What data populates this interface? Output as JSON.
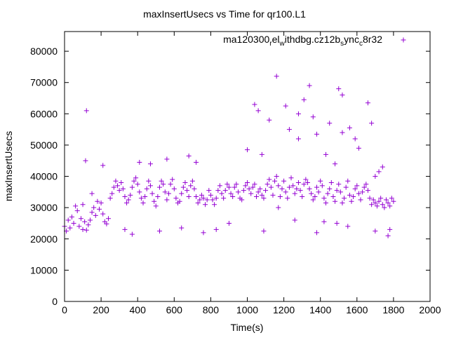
{
  "chart_data": {
    "type": "scatter",
    "title": "maxInsertUsecs vs Time for qr100.L1",
    "xlabel": "Time(s)",
    "ylabel": "maxInsertUsecs",
    "xlim": [
      0,
      2000
    ],
    "ylim": [
      0,
      86300
    ],
    "xticks": [
      0,
      200,
      400,
      600,
      800,
      1000,
      1200,
      1400,
      1600,
      1800,
      2000
    ],
    "yticks": [
      0,
      10000,
      20000,
      30000,
      40000,
      50000,
      60000,
      70000,
      80000
    ],
    "grid": false,
    "legend_position": "top-right",
    "series": [
      {
        "name": "ma120300_rel_withdbg.cz12b_sync_c8r32",
        "legend_parts": [
          {
            "t": "ma120300",
            "sub": false
          },
          {
            "t": "r",
            "sub": true
          },
          {
            "t": "el",
            "sub": false
          },
          {
            "t": "w",
            "sub": true
          },
          {
            "t": "ithdbg.cz12b",
            "sub": false
          },
          {
            "t": "s",
            "sub": true
          },
          {
            "t": "ync",
            "sub": false
          },
          {
            "t": "c",
            "sub": true
          },
          {
            "t": "8r32",
            "sub": false
          }
        ],
        "color": "#9400d3",
        "marker": "plus",
        "x_start": 0,
        "x_step": 10,
        "y": [
          24000,
          22500,
          26000,
          23500,
          27000,
          25000,
          30500,
          29000,
          24000,
          26500,
          23000,
          25500,
          22800,
          24500,
          26000,
          28500,
          30000,
          27500,
          32000,
          29500,
          31500,
          28000,
          25500,
          24800,
          26500,
          33000,
          34500,
          36500,
          38500,
          37000,
          35500,
          38000,
          36000,
          33500,
          31500,
          32500,
          34000,
          36500,
          38500,
          39500,
          37500,
          35000,
          33000,
          31500,
          33500,
          36000,
          38500,
          37000,
          34500,
          32000,
          30500,
          33500,
          36500,
          38500,
          37500,
          35000,
          32500,
          34500,
          37500,
          39000,
          36000,
          33000,
          31500,
          32000,
          34500,
          36500,
          38000,
          35500,
          33500,
          37000,
          38500,
          36000,
          33500,
          31500,
          32500,
          34000,
          33000,
          31000,
          32500,
          35500,
          34000,
          32500,
          31000,
          33000,
          35500,
          37000,
          34500,
          33000,
          35500,
          37500,
          36500,
          34500,
          33500,
          36500,
          37500,
          35000,
          33000,
          32500,
          35500,
          37000,
          38000,
          36000,
          34500,
          36500,
          37500,
          33500,
          35000,
          36000,
          34000,
          33000,
          35500,
          37500,
          39000,
          36500,
          34000,
          38500,
          40000,
          37000,
          33500,
          36000,
          38500,
          35000,
          33000,
          36500,
          39500,
          37000,
          34500,
          36000,
          38000,
          35500,
          33500,
          37500,
          39000,
          38000,
          36000,
          34500,
          32500,
          33500,
          36500,
          35000,
          38500,
          37000,
          33000,
          31500,
          34500,
          36000,
          38000,
          33500,
          32000,
          35500,
          37500,
          35000,
          31500,
          33000,
          36500,
          38500,
          34000,
          32000,
          33500,
          36000,
          37000,
          34500,
          32500,
          35000,
          36500,
          37500,
          35500,
          33000,
          31000,
          32500,
          31500,
          30500,
          32000,
          33000,
          31000,
          30000,
          32500,
          31500,
          30500,
          33000,
          32000
        ],
        "extra_points": [
          [
            120,
            61000
          ],
          [
            115,
            45000
          ],
          [
            210,
            43500
          ],
          [
            410,
            44500
          ],
          [
            470,
            44000
          ],
          [
            560,
            45500
          ],
          [
            680,
            46500
          ],
          [
            720,
            44500
          ],
          [
            1040,
            63000
          ],
          [
            1060,
            61000
          ],
          [
            1120,
            58000
          ],
          [
            1160,
            72000
          ],
          [
            1210,
            62500
          ],
          [
            1230,
            55000
          ],
          [
            1280,
            52000
          ],
          [
            1310,
            64500
          ],
          [
            1340,
            69000
          ],
          [
            1360,
            59000
          ],
          [
            1380,
            53500
          ],
          [
            1430,
            47000
          ],
          [
            1500,
            68000
          ],
          [
            1520,
            66000
          ],
          [
            1560,
            55500
          ],
          [
            1590,
            52000
          ],
          [
            1610,
            49000
          ],
          [
            1660,
            63500
          ],
          [
            1680,
            57000
          ],
          [
            1740,
            43000
          ],
          [
            1000,
            48500
          ],
          [
            1080,
            47000
          ],
          [
            1280,
            60000
          ],
          [
            1450,
            57000
          ],
          [
            1520,
            54000
          ],
          [
            1480,
            44000
          ],
          [
            100,
            31000
          ],
          [
            150,
            34500
          ],
          [
            330,
            23000
          ],
          [
            370,
            21500
          ],
          [
            520,
            22500
          ],
          [
            760,
            22000
          ],
          [
            830,
            23000
          ],
          [
            900,
            25000
          ],
          [
            1090,
            22500
          ],
          [
            1260,
            26000
          ],
          [
            1420,
            25500
          ],
          [
            1550,
            24000
          ],
          [
            1700,
            22500
          ],
          [
            1770,
            21000
          ],
          [
            1780,
            23000
          ],
          [
            640,
            23500
          ],
          [
            1170,
            30000
          ],
          [
            1700,
            40000
          ],
          [
            1720,
            41500
          ],
          [
            1380,
            22000
          ],
          [
            1490,
            25000
          ]
        ]
      }
    ]
  }
}
